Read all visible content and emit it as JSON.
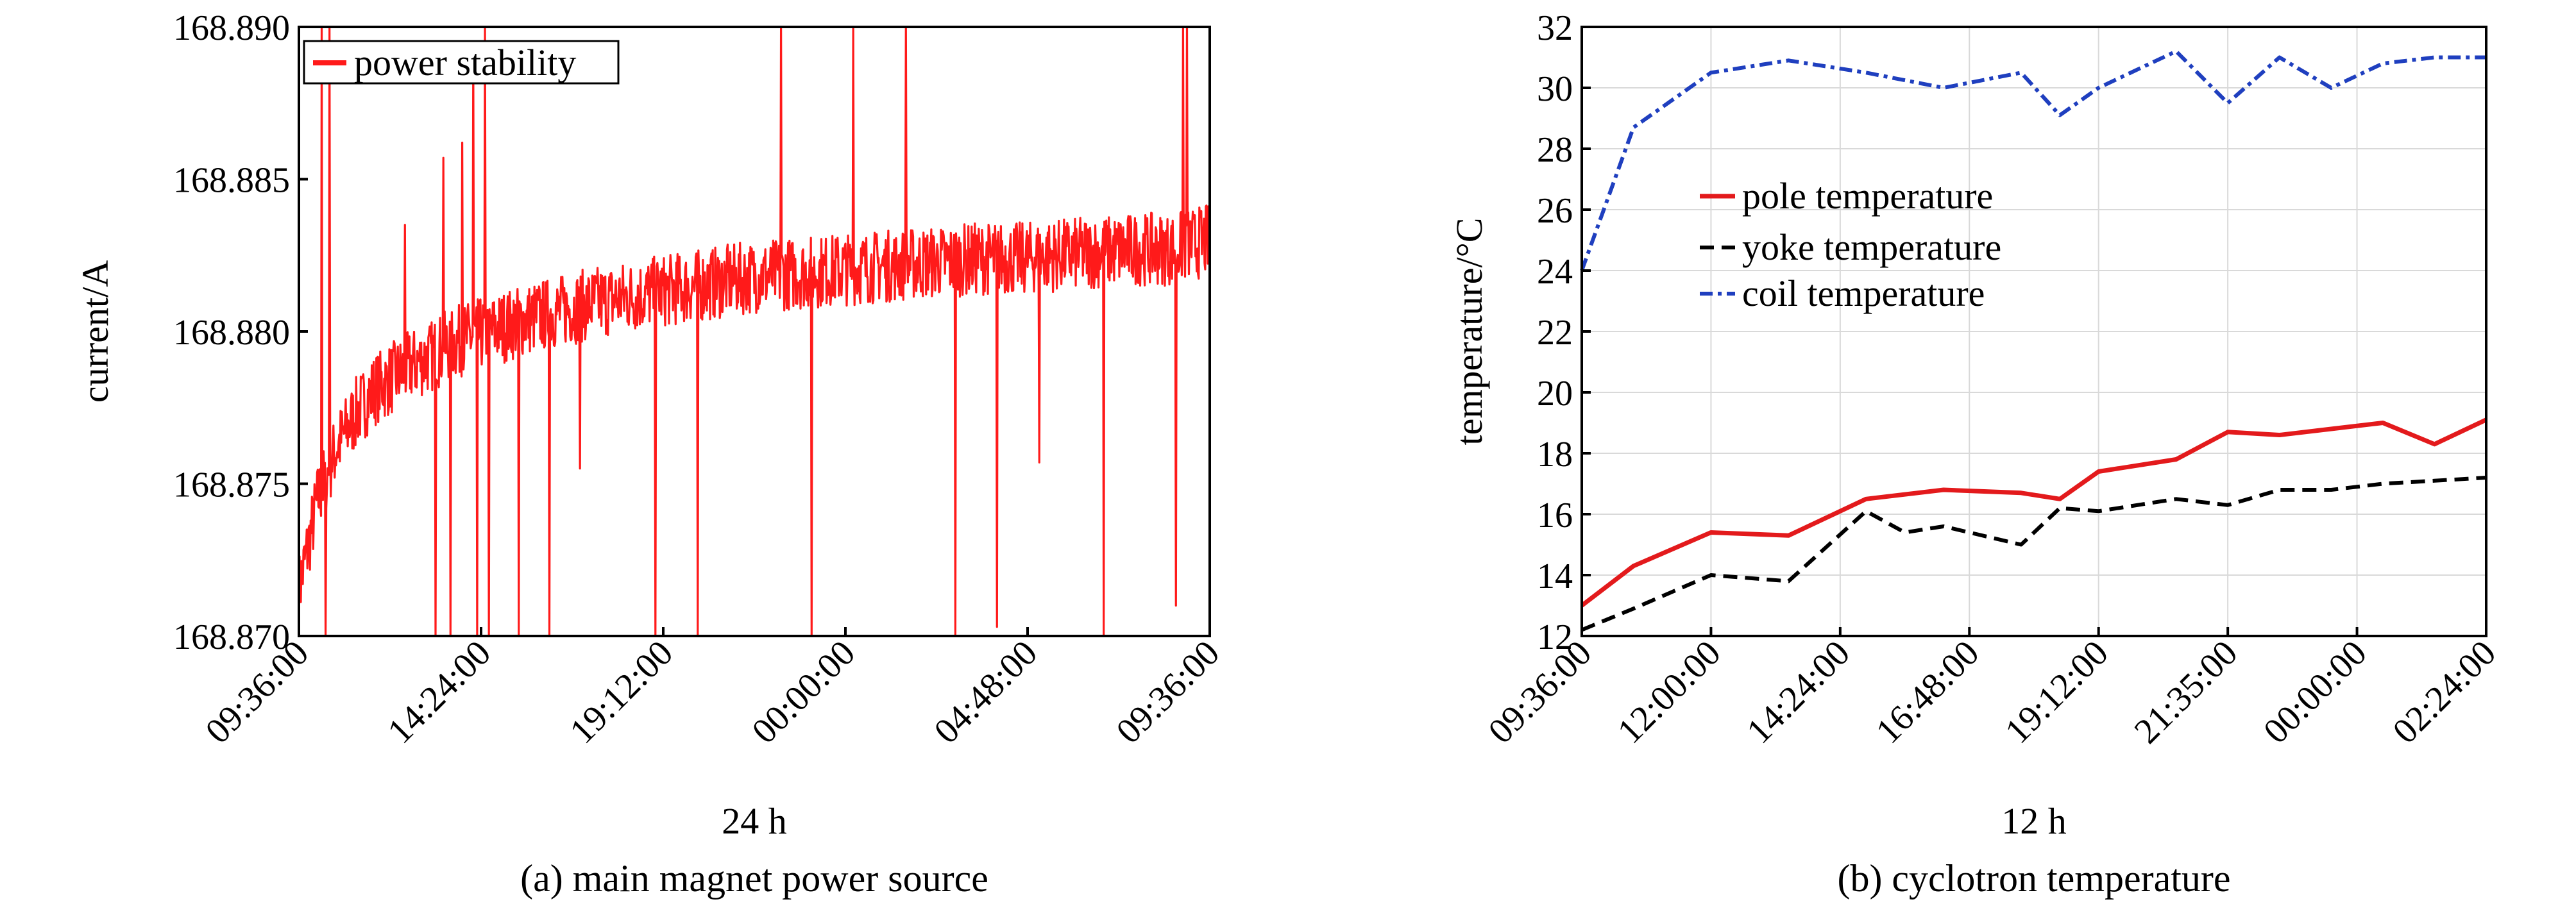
{
  "chart_data": [
    {
      "type": "line",
      "caption": "(a) main magnet power source",
      "xlabel": "24 h",
      "ylabel": "current/A",
      "x_tick_labels": [
        "09:36:00",
        "14:24:00",
        "19:12:00",
        "00:00:00",
        "04:48:00",
        "09:36:00"
      ],
      "y_ticks": [
        168.87,
        168.875,
        168.88,
        168.885,
        168.89
      ],
      "y_tick_labels": [
        "168.870",
        "168.875",
        "168.880",
        "168.885",
        "168.890"
      ],
      "ylim": [
        168.87,
        168.89
      ],
      "x_range_hours": [
        0,
        24
      ],
      "legend_position": "top-left",
      "grid": false,
      "series": [
        {
          "name": "power stability",
          "color": "#ff1a1a",
          "x_hours": [
            0,
            0.5,
            1,
            1.5,
            2,
            2.5,
            3,
            3.5,
            4,
            5,
            6,
            7,
            8,
            9,
            10,
            11,
            12,
            13,
            14,
            15,
            16,
            17,
            18,
            19,
            20,
            21,
            22,
            23,
            24
          ],
          "values": [
            168.8715,
            168.8745,
            168.8762,
            168.8773,
            168.8781,
            168.8785,
            168.8789,
            168.8792,
            168.8796,
            168.88,
            168.8804,
            168.8807,
            168.881,
            168.8812,
            168.8814,
            168.8816,
            168.8818,
            168.8819,
            168.882,
            168.8821,
            168.8822,
            168.8823,
            168.8824,
            168.8824,
            168.8825,
            168.8826,
            168.8827,
            168.8827,
            168.883
          ],
          "noise_amplitude": 0.0012,
          "spikes": [
            {
              "x_hours": 0.6,
              "value": 168.89
            },
            {
              "x_hours": 0.7,
              "value": 168.87
            },
            {
              "x_hours": 0.8,
              "value": 168.89
            },
            {
              "x_hours": 2.8,
              "value": 168.8835
            },
            {
              "x_hours": 3.6,
              "value": 168.87
            },
            {
              "x_hours": 3.8,
              "value": 168.8857
            },
            {
              "x_hours": 4.0,
              "value": 168.87
            },
            {
              "x_hours": 4.3,
              "value": 168.8862
            },
            {
              "x_hours": 4.6,
              "value": 168.889
            },
            {
              "x_hours": 4.7,
              "value": 168.87
            },
            {
              "x_hours": 4.9,
              "value": 168.89
            },
            {
              "x_hours": 5.0,
              "value": 168.87
            },
            {
              "x_hours": 5.8,
              "value": 168.87
            },
            {
              "x_hours": 6.6,
              "value": 168.87
            },
            {
              "x_hours": 7.4,
              "value": 168.8755
            },
            {
              "x_hours": 9.4,
              "value": 168.87
            },
            {
              "x_hours": 10.5,
              "value": 168.87
            },
            {
              "x_hours": 12.7,
              "value": 168.89
            },
            {
              "x_hours": 13.5,
              "value": 168.87
            },
            {
              "x_hours": 14.6,
              "value": 168.89
            },
            {
              "x_hours": 16.0,
              "value": 168.89
            },
            {
              "x_hours": 17.3,
              "value": 168.87
            },
            {
              "x_hours": 18.4,
              "value": 168.8703
            },
            {
              "x_hours": 19.5,
              "value": 168.8757
            },
            {
              "x_hours": 21.2,
              "value": 168.87
            },
            {
              "x_hours": 23.1,
              "value": 168.871
            },
            {
              "x_hours": 23.3,
              "value": 168.89
            },
            {
              "x_hours": 23.4,
              "value": 168.89
            }
          ]
        }
      ]
    },
    {
      "type": "line",
      "caption": "(b) cyclotron temperature",
      "xlabel": "12 h",
      "ylabel": "temperature/°C",
      "x_tick_labels": [
        "09:36:00",
        "12:00:00",
        "14:24:00",
        "16:48:00",
        "19:12:00",
        "21:35:00",
        "00:00:00",
        "02:24:00"
      ],
      "y_ticks": [
        12,
        14,
        16,
        18,
        20,
        22,
        24,
        26,
        28,
        30,
        32
      ],
      "y_tick_labels": [
        "12",
        "14",
        "16",
        "18",
        "20",
        "22",
        "24",
        "26",
        "28",
        "30",
        "32"
      ],
      "ylim": [
        12,
        32
      ],
      "x_range_index": [
        0,
        7
      ],
      "legend_position": "center-left",
      "grid": true,
      "series": [
        {
          "name": "pole temperature",
          "color": "#e31a1c",
          "dash": "solid",
          "x": [
            0,
            0.4,
            1.0,
            1.6,
            2.2,
            2.8,
            3.4,
            3.7,
            4.0,
            4.6,
            5.0,
            5.4,
            5.8,
            6.2,
            6.6,
            7.0
          ],
          "values": [
            13.0,
            14.3,
            15.4,
            15.3,
            16.5,
            16.8,
            16.7,
            16.5,
            17.4,
            17.8,
            18.7,
            18.6,
            18.8,
            19.0,
            18.3,
            19.1
          ]
        },
        {
          "name": "yoke temperature",
          "color": "#000000",
          "dash": "dashed",
          "x": [
            0,
            0.4,
            1.0,
            1.6,
            2.2,
            2.5,
            2.8,
            3.4,
            3.7,
            4.0,
            4.6,
            5.0,
            5.4,
            5.8,
            6.2,
            6.6,
            7.0
          ],
          "values": [
            12.2,
            12.9,
            14.0,
            13.8,
            16.1,
            15.4,
            15.6,
            15.0,
            16.2,
            16.1,
            16.5,
            16.3,
            16.8,
            16.8,
            17.0,
            17.1,
            17.2
          ],
          "note": ""
        },
        {
          "name": "coil temperature",
          "color": "#1f3fbf",
          "dash": "dashdot",
          "x": [
            0,
            0.4,
            1.0,
            1.6,
            2.2,
            2.8,
            3.4,
            3.7,
            4.0,
            4.6,
            5.0,
            5.4,
            5.8,
            6.2,
            6.6,
            7.0
          ],
          "values": [
            24.0,
            28.7,
            30.5,
            30.9,
            30.5,
            30.0,
            30.5,
            29.1,
            30.0,
            31.2,
            29.5,
            31.0,
            30.0,
            30.8,
            31.0,
            31.0
          ]
        }
      ]
    }
  ]
}
